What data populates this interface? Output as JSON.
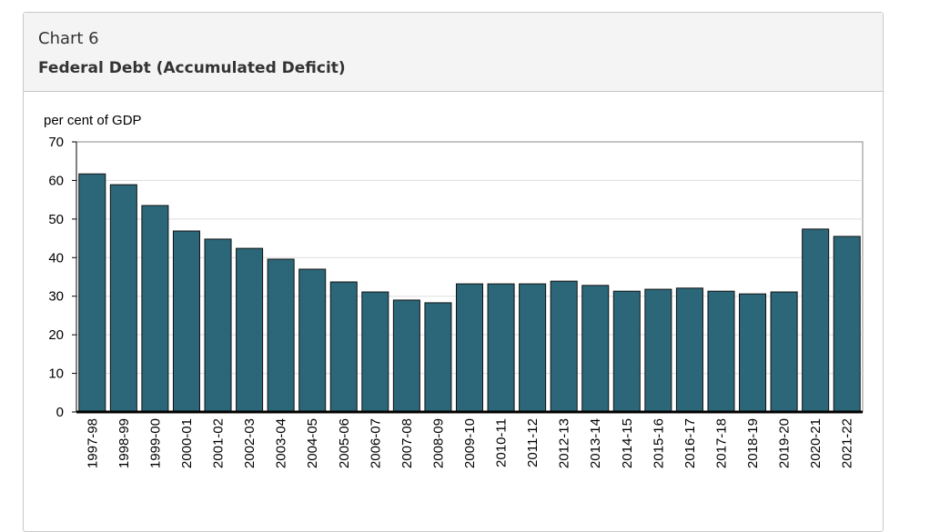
{
  "card": {
    "label": "Chart 6",
    "title": "Federal Debt (Accumulated Deficit)"
  },
  "chart_data": {
    "type": "bar",
    "title": "Federal Debt (Accumulated Deficit)",
    "ylabel": "per cent of GDP",
    "ylim": [
      0,
      70
    ],
    "yticks": [
      0,
      10,
      20,
      30,
      40,
      50,
      60,
      70
    ],
    "grid": true,
    "bar_color": "#2b6779",
    "categories": [
      "1997-98",
      "1998-99",
      "1999-00",
      "2000-01",
      "2001-02",
      "2002-03",
      "2003-04",
      "2004-05",
      "2005-06",
      "2006-07",
      "2007-08",
      "2008-09",
      "2009-10",
      "2010-11",
      "2011-12",
      "2012-13",
      "2013-14",
      "2014-15",
      "2015-16",
      "2016-17",
      "2017-18",
      "2018-19",
      "2019-20",
      "2020-21",
      "2021-22"
    ],
    "values": [
      61.7,
      58.9,
      53.5,
      46.9,
      44.8,
      42.4,
      39.6,
      37.0,
      33.7,
      31.1,
      29.0,
      28.3,
      33.2,
      33.2,
      33.2,
      33.9,
      32.8,
      31.3,
      31.8,
      32.1,
      31.3,
      30.6,
      31.1,
      47.4,
      45.5
    ]
  }
}
